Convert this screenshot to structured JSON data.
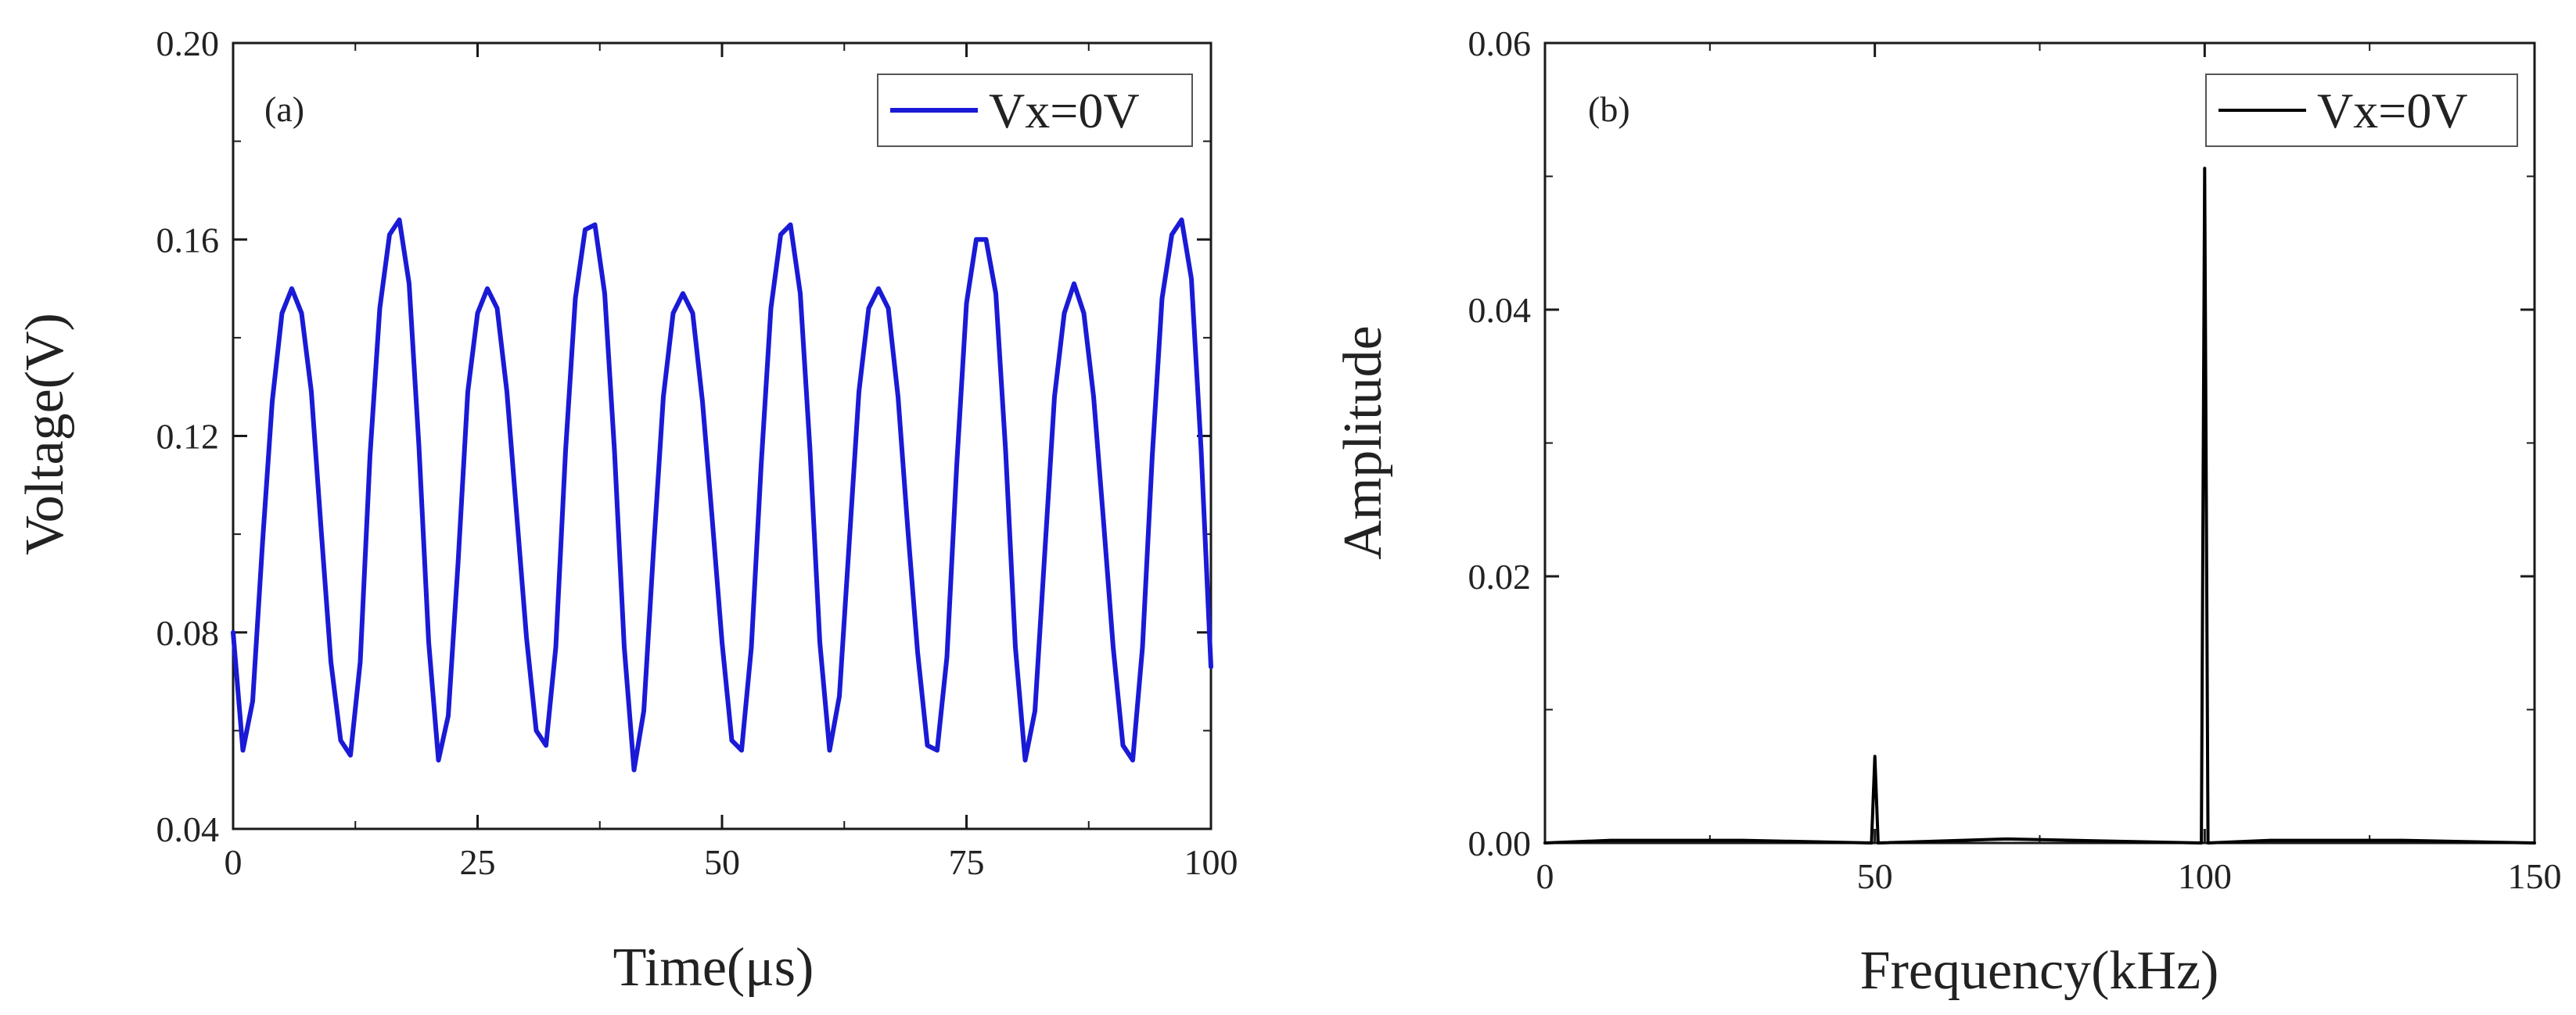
{
  "chart_data": [
    {
      "id": "a",
      "type": "line",
      "panel_label": "(a)",
      "title": "",
      "xlabel": "Time(μs)",
      "ylabel": "Voltage(V)",
      "xlim": [
        0,
        100
      ],
      "ylim": [
        0.04,
        0.2
      ],
      "x_ticks": [
        0,
        25,
        50,
        75,
        100
      ],
      "y_ticks": [
        0.04,
        0.08,
        0.12,
        0.16,
        0.2
      ],
      "x_tick_labels": [
        "0",
        "25",
        "50",
        "75",
        "100"
      ],
      "y_tick_labels": [
        "0.04",
        "0.08",
        "0.12",
        "0.16",
        "0.20"
      ],
      "legend_position": "top-right",
      "series": [
        {
          "name": "Vx=0V",
          "color": "#1a1ad6",
          "x": [
            0,
            1,
            2,
            3,
            4,
            5,
            6,
            7,
            8,
            9,
            10,
            11,
            12,
            13,
            14,
            15,
            16,
            17,
            18,
            19,
            20,
            21,
            22,
            23,
            24,
            25,
            26,
            27,
            28,
            29,
            30,
            31,
            32,
            33,
            34,
            35,
            36,
            37,
            38,
            39,
            40,
            41,
            42,
            43,
            44,
            45,
            46,
            47,
            48,
            49,
            50,
            51,
            52,
            53,
            54,
            55,
            56,
            57,
            58,
            59,
            60,
            61,
            62,
            63,
            64,
            65,
            66,
            67,
            68,
            69,
            70,
            71,
            72,
            73,
            74,
            75,
            76,
            77,
            78,
            79,
            80,
            81,
            82,
            83,
            84,
            85,
            86,
            87,
            88,
            89,
            90,
            91,
            92,
            93,
            94,
            95,
            96,
            97,
            98,
            99,
            100
          ],
          "y": [
            0.08,
            0.056,
            0.066,
            0.098,
            0.127,
            0.145,
            0.15,
            0.145,
            0.129,
            0.101,
            0.074,
            0.058,
            0.055,
            0.074,
            0.116,
            0.146,
            0.161,
            0.164,
            0.151,
            0.118,
            0.078,
            0.054,
            0.063,
            0.094,
            0.129,
            0.145,
            0.15,
            0.146,
            0.129,
            0.104,
            0.079,
            0.06,
            0.057,
            0.077,
            0.117,
            0.148,
            0.162,
            0.163,
            0.149,
            0.117,
            0.077,
            0.052,
            0.064,
            0.097,
            0.128,
            0.145,
            0.149,
            0.145,
            0.127,
            0.103,
            0.078,
            0.058,
            0.056,
            0.077,
            0.114,
            0.146,
            0.161,
            0.163,
            0.149,
            0.117,
            0.078,
            0.056,
            0.067,
            0.098,
            0.129,
            0.146,
            0.15,
            0.146,
            0.128,
            0.101,
            0.076,
            0.057,
            0.056,
            0.075,
            0.114,
            0.147,
            0.16,
            0.16,
            0.149,
            0.117,
            0.077,
            0.054,
            0.064,
            0.096,
            0.128,
            0.145,
            0.151,
            0.145,
            0.128,
            0.103,
            0.077,
            0.057,
            0.054,
            0.077,
            0.116,
            0.148,
            0.161,
            0.164,
            0.152,
            0.117,
            0.073
          ]
        }
      ]
    },
    {
      "id": "b",
      "type": "line",
      "panel_label": "(b)",
      "title": "",
      "xlabel": "Frequency(kHz)",
      "ylabel": "Amplitude",
      "xlim": [
        0,
        150
      ],
      "ylim": [
        0,
        0.06
      ],
      "x_ticks": [
        0,
        50,
        100,
        150
      ],
      "y_ticks": [
        0,
        0.02,
        0.04,
        0.06
      ],
      "x_tick_labels": [
        "0",
        "50",
        "100",
        "150"
      ],
      "y_tick_labels": [
        "0.00",
        "0.02",
        "0.04",
        "0.06"
      ],
      "legend_position": "top-right",
      "series": [
        {
          "name": "Vx=0V",
          "color": "#000000",
          "x": [
            0,
            10,
            30,
            49.5,
            50,
            50.5,
            70,
            99.5,
            100,
            100.5,
            110,
            115,
            130,
            150
          ],
          "y": [
            0.0,
            0.0002,
            0.0002,
            0.0,
            0.0065,
            0.0,
            0.0003,
            0.0,
            0.0506,
            0.0,
            0.0002,
            0.0002,
            0.0002,
            0.0
          ]
        }
      ]
    }
  ]
}
